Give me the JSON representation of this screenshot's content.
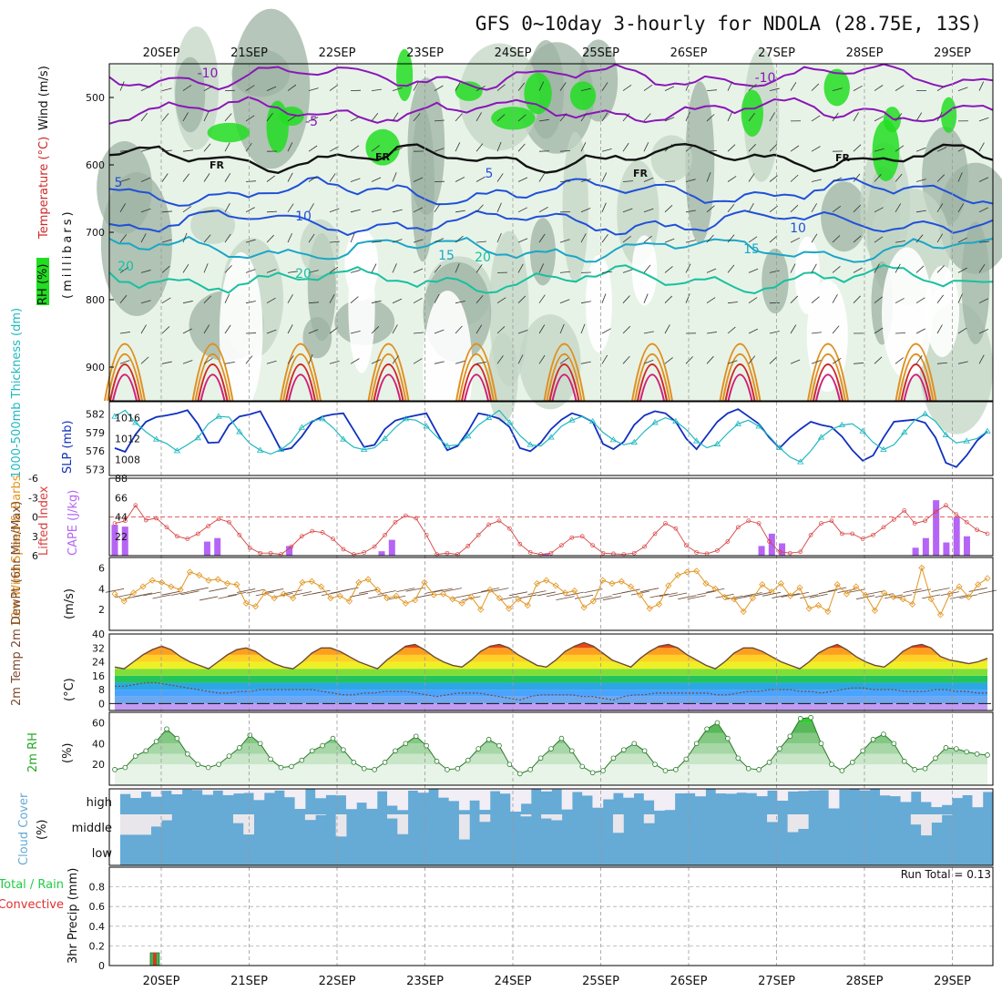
{
  "title": "GFS 0~10day 3-hourly for NDOLA (28.75E, 13S)",
  "dates": [
    "20SEP",
    "21SEP",
    "22SEP",
    "23SEP",
    "24SEP",
    "25SEP",
    "26SEP",
    "27SEP",
    "28SEP",
    "29SEP"
  ],
  "run_total_label": "Run Total = 0.13",
  "colors": {
    "rh_light": "#e8f3e8",
    "rh_mid": "#c3d6c6",
    "rh_dark": "#9db3a3",
    "rh_green": "#22dd22",
    "temp_purple": "#8a16b8",
    "temp_blue": "#2050d8",
    "temp_cyan": "#1aa6c8",
    "temp_teal": "#18c0a0",
    "temp_orange": "#e09020",
    "temp_red": "#d02828",
    "temp_magenta": "#d0207a",
    "slp_line": "#1030c0",
    "thick_line": "#20b8c0",
    "cape_bar": "#b565f5",
    "li_line": "#d84040",
    "wind_line": "#e29520",
    "cloud": "#66aad6",
    "precip_green": "#22cc44",
    "precip_red": "#e03030"
  },
  "chart_data": [
    {
      "type": "heatmap",
      "panel": "upper_air",
      "ylabels": [
        "Wind (m/s)",
        "Temperature (°C)",
        "RH (%)",
        "(millibars)"
      ],
      "y_ticks": [
        500,
        600,
        700,
        800,
        900
      ],
      "ylim": [
        450,
        950
      ],
      "freezing_label": "FR",
      "contour_labels": [
        "-10",
        "-5",
        "5",
        "10",
        "15",
        "20"
      ],
      "isotherms": [
        {
          "name": "-10",
          "pressure": 470
        },
        {
          "name": "-5",
          "pressure": 520
        },
        {
          "name": "0",
          "pressure": 590
        },
        {
          "name": "5",
          "pressure": 640
        },
        {
          "name": "10",
          "pressure": 685
        },
        {
          "name": "15",
          "pressure": 725
        },
        {
          "name": "20",
          "pressure": 770
        }
      ]
    },
    {
      "type": "line",
      "panel": "slp_thickness",
      "ylabel_left": "1000-500mb Thickness (dm)",
      "ylabel_right": "SLP (mb)",
      "left_ticks": [
        573,
        576,
        579,
        582
      ],
      "right_ticks": [
        1008,
        1012,
        1016
      ],
      "series": [
        {
          "name": "SLP",
          "values": [
            1010.2,
            1009.5,
            1012.8,
            1015.2,
            1016.1,
            1016.4,
            1016.8,
            1017.4,
            1014.8,
            1011.2,
            1011.3,
            1014.6,
            1016.2,
            1016.6,
            1017.2,
            1013.6,
            1009.8,
            1010.2,
            1012.4,
            1015.2,
            1016.2,
            1016.6,
            1016.8,
            1013.6,
            1010.4,
            1010.8,
            1013.8,
            1015.4,
            1016.0,
            1016.4,
            1016.8,
            1013.2,
            1009.8,
            1010.6,
            1013.4,
            1016.8,
            1016.4,
            1015.8,
            1014.2,
            1010.2,
            1009.6,
            1011.2,
            1013.8,
            1015.6,
            1016.8,
            1016.2,
            1015.2,
            1011.0,
            1010.0,
            1011.4,
            1014.6,
            1016.4,
            1017.2,
            1016.8,
            1015.2,
            1012.0,
            1010.0,
            1012.6,
            1015.2,
            1016.8,
            1017.6,
            1016.2,
            1014.8,
            1012.2,
            1010.2,
            1012.2,
            1013.8,
            1015.2,
            1014.6,
            1014.2,
            1012.4,
            1009.8,
            1007.8,
            1008.8,
            1012.2,
            1015.2,
            1015.4,
            1015.6,
            1015.0,
            1012.2,
            1007.4,
            1006.6,
            1008.8,
            1011.6,
            1013.4
          ]
        },
        {
          "name": "Thickness",
          "values": [
            581.6,
            582.6,
            580.6,
            579.1,
            577.9,
            577.2,
            576.0,
            577.0,
            578.1,
            580.4,
            581.6,
            581.5,
            579.1,
            577.2,
            576.1,
            575.5,
            576.2,
            577.5,
            579.8,
            580.9,
            581.2,
            579.8,
            577.9,
            576.6,
            576.2,
            576.5,
            578.0,
            579.8,
            581.2,
            581.0,
            580.0,
            578.3,
            576.8,
            577.0,
            578.4,
            580.2,
            581.4,
            582.6,
            580.6,
            578.5,
            577.0,
            576.8,
            578.2,
            580.0,
            581.0,
            581.6,
            580.8,
            579.0,
            577.8,
            577.0,
            577.4,
            579.2,
            580.6,
            581.4,
            580.8,
            579.5,
            577.6,
            576.5,
            577.1,
            578.9,
            580.4,
            581.0,
            580.0,
            578.4,
            576.5,
            575.0,
            574.2,
            576.0,
            578.2,
            579.5,
            580.2,
            580.4,
            579.2,
            577.4,
            576.2,
            577.0,
            579.0,
            581.0,
            582.0,
            580.8,
            578.6,
            577.3,
            577.6,
            578.0,
            579.2
          ]
        }
      ]
    },
    {
      "type": "bar",
      "panel": "cape_li",
      "ylabel_left": "Lifted Index",
      "ylabel_right": "CAPE (J/kg)",
      "li_ticks": [
        6,
        3,
        0,
        -3,
        -6
      ],
      "cape_ticks": [
        22,
        44,
        66,
        88
      ],
      "series": [
        {
          "name": "CAPE",
          "values": [
            35,
            33,
            0,
            0,
            0,
            0,
            0,
            0,
            0,
            16,
            20,
            0,
            0,
            0,
            0,
            0,
            0,
            11,
            0,
            0,
            0,
            0,
            0,
            0,
            0,
            0,
            5,
            18,
            0,
            0,
            0,
            0,
            0,
            0,
            0,
            0,
            0,
            0,
            0,
            0,
            0,
            0,
            2,
            0,
            0,
            0,
            0,
            0,
            0,
            0,
            0,
            0,
            0,
            0,
            0,
            0,
            0,
            0,
            0,
            0,
            0,
            0,
            0,
            11,
            25,
            14,
            0,
            0,
            0,
            0,
            0,
            0,
            0,
            0,
            0,
            0,
            0,
            0,
            9,
            20,
            63,
            15,
            44,
            22,
            0,
            0
          ]
        },
        {
          "name": "Lifted Index",
          "values": [
            1.0,
            0.6,
            -1.8,
            0.5,
            0.2,
            1.6,
            3.0,
            3.4,
            2.6,
            1.4,
            0.3,
            0.8,
            2.8,
            4.8,
            5.6,
            5.6,
            5.8,
            4.6,
            3.0,
            2.2,
            2.4,
            3.4,
            5.0,
            5.8,
            5.5,
            4.6,
            2.8,
            0.8,
            -0.2,
            0.2,
            2.8,
            5.8,
            5.6,
            5.8,
            4.5,
            2.8,
            1.2,
            0.6,
            1.8,
            4.2,
            5.5,
            5.8,
            5.6,
            4.4,
            3.2,
            3.0,
            4.4,
            5.6,
            5.7,
            5.8,
            5.6,
            4.6,
            2.6,
            1.0,
            1.8,
            4.4,
            5.5,
            5.7,
            5.2,
            3.8,
            1.6,
            0.6,
            1.0,
            3.8,
            5.4,
            5.6,
            5.4,
            2.8,
            1.0,
            0.6,
            2.6,
            2.6,
            3.4,
            2.8,
            1.6,
            0.4,
            -1.0,
            1.0,
            0.6,
            -0.8,
            -1.8,
            -0.4,
            0.8,
            2.0,
            2.6
          ]
        }
      ]
    },
    {
      "type": "line",
      "panel": "wind10m",
      "ylabel": "10m Wind Speed & Barbs",
      "yunit": "(m/s)",
      "y_ticks": [
        2,
        4,
        6
      ],
      "ylim": [
        0,
        7
      ],
      "series": [
        {
          "name": "10m Wind Speed",
          "values": [
            3.5,
            2.8,
            3.6,
            4.2,
            4.8,
            4.6,
            4.2,
            3.9,
            5.6,
            5.3,
            4.8,
            4.9,
            4.5,
            4.4,
            2.6,
            2.3,
            3.6,
            3.1,
            3.5,
            3.1,
            4.6,
            4.7,
            4.2,
            3.1,
            3.3,
            2.8,
            4.6,
            4.9,
            3.9,
            3.1,
            3.3,
            2.6,
            2.9,
            4.6,
            3.4,
            3.5,
            3.0,
            2.6,
            3.2,
            2.0,
            3.9,
            3.1,
            2.1,
            3.0,
            2.4,
            4.5,
            4.8,
            4.3,
            3.6,
            3.8,
            2.2,
            2.8,
            4.8,
            4.5,
            4.7,
            4.2,
            3.4,
            2.1,
            2.5,
            4.3,
            5.3,
            5.6,
            5.7,
            4.5,
            4.0,
            3.2,
            3.0,
            1.8,
            3.1,
            4.4,
            3.7,
            4.5,
            3.3,
            4.1,
            2.1,
            2.4,
            1.8,
            4.4,
            3.5,
            4.2,
            3.4,
            1.9,
            3.6,
            3.2,
            3.0,
            2.5,
            6.0,
            3.0,
            1.5,
            3.5,
            4.2,
            3.2,
            4.4,
            5.0
          ]
        }
      ]
    },
    {
      "type": "area",
      "panel": "temp2m",
      "ylabel": "2m Temp 2m DewPt (6hr Min/Max)",
      "yunit": "(°C)",
      "y_ticks": [
        0,
        8,
        16,
        24,
        32,
        40
      ],
      "ylim": [
        -4,
        40
      ],
      "series": [
        {
          "name": "2m Temp",
          "values": [
            21,
            20,
            24,
            28,
            31,
            33,
            31,
            27,
            24,
            22,
            20,
            24,
            28,
            31,
            32,
            30,
            26,
            23,
            21,
            20,
            24,
            29,
            32,
            32,
            30,
            27,
            24,
            22,
            20,
            25,
            29,
            33,
            34,
            31,
            27,
            24,
            22,
            21,
            25,
            30,
            33,
            34,
            32,
            28,
            25,
            22,
            21,
            25,
            30,
            33,
            35,
            33,
            29,
            25,
            23,
            21,
            26,
            30,
            33,
            34,
            32,
            28,
            25,
            22,
            20,
            24,
            29,
            32,
            32,
            30,
            27,
            24,
            22,
            20,
            24,
            29,
            32,
            34,
            31,
            27,
            24,
            22,
            21,
            25,
            30,
            33,
            34,
            32,
            27,
            25,
            24,
            23,
            24,
            26
          ]
        },
        {
          "name": "2m DewPt",
          "values": [
            10,
            10,
            11,
            12,
            12,
            11,
            10,
            9,
            8,
            7,
            6,
            6,
            7,
            7,
            8,
            8,
            8,
            8,
            8,
            8,
            7,
            6,
            5,
            5,
            6,
            6,
            7,
            7,
            7,
            6,
            5,
            4,
            5,
            6,
            6,
            6,
            5,
            4,
            3,
            2,
            4,
            5,
            5,
            5,
            5,
            4,
            4,
            3,
            2,
            4,
            5,
            5,
            6,
            6,
            6,
            6,
            6,
            6,
            5,
            5,
            6,
            7,
            7,
            8,
            8,
            8,
            7,
            7,
            6,
            7,
            8,
            9,
            9,
            8,
            8,
            8,
            7,
            7,
            7,
            8,
            8,
            7,
            7,
            6,
            6
          ]
        }
      ]
    },
    {
      "type": "area",
      "panel": "rh2m",
      "ylabel": "2m RH",
      "yunit": "(%)",
      "y_ticks": [
        20,
        40,
        60
      ],
      "ylim": [
        0,
        70
      ],
      "series": [
        {
          "name": "2m RH",
          "values": [
            15,
            17,
            28,
            33,
            42,
            54,
            45,
            30,
            20,
            17,
            20,
            28,
            36,
            48,
            40,
            25,
            17,
            18,
            24,
            33,
            38,
            45,
            34,
            22,
            16,
            15,
            22,
            33,
            40,
            47,
            38,
            23,
            15,
            16,
            24,
            35,
            44,
            38,
            20,
            11,
            15,
            26,
            35,
            45,
            33,
            18,
            12,
            14,
            26,
            34,
            40,
            33,
            20,
            14,
            15,
            25,
            40,
            54,
            60,
            45,
            26,
            16,
            15,
            22,
            35,
            47,
            64,
            65,
            40,
            20,
            14,
            22,
            33,
            44,
            49,
            40,
            23,
            15,
            16,
            26,
            36,
            35,
            32,
            30,
            29
          ]
        }
      ]
    },
    {
      "type": "heatmap",
      "panel": "cloud_cover",
      "ylabel": "Cloud Cover",
      "yunit": "(%)",
      "levels": [
        "high",
        "middle",
        "low"
      ]
    },
    {
      "type": "bar",
      "panel": "precip",
      "ylabel": "3hr Precip (mm)",
      "legend_total": "Total / Rain",
      "legend_conv": "Convective",
      "y_ticks": [
        0,
        0.2,
        0.4,
        0.6,
        0.8
      ],
      "ylim": [
        0,
        1
      ],
      "series": [
        {
          "name": "Total / Rain",
          "values": [
            0,
            0,
            0.13,
            0,
            0,
            0,
            0,
            0,
            0,
            0,
            0,
            0,
            0,
            0,
            0,
            0,
            0,
            0,
            0,
            0,
            0,
            0,
            0,
            0,
            0,
            0,
            0,
            0,
            0,
            0,
            0,
            0,
            0,
            0,
            0,
            0,
            0,
            0,
            0,
            0,
            0,
            0,
            0,
            0,
            0,
            0,
            0,
            0,
            0,
            0,
            0,
            0,
            0,
            0,
            0,
            0,
            0,
            0,
            0,
            0,
            0,
            0,
            0,
            0,
            0,
            0,
            0,
            0,
            0,
            0,
            0,
            0,
            0,
            0,
            0,
            0,
            0,
            0,
            0,
            0,
            0
          ]
        }
      ]
    }
  ]
}
